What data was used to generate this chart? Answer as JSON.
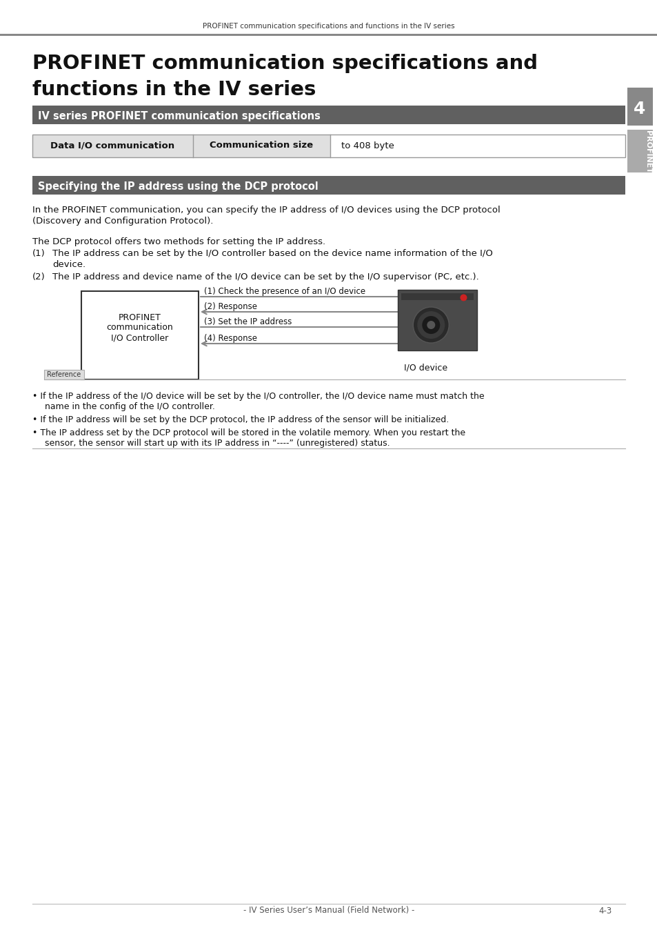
{
  "page_header": "PROFINET communication specifications and functions in the IV series",
  "main_title_line1": "PROFINET communication specifications and",
  "main_title_line2": "functions in the IV series",
  "section1_title": "IV series PROFINET communication specifications",
  "table_col1": "Data I/O communication",
  "table_col2": "Communication size",
  "table_col3": "to 408 byte",
  "section2_title": "Specifying the IP address using the DCP protocol",
  "para1a": "In the PROFINET communication, you can specify the IP address of I/O devices using the DCP protocol",
  "para1b": "(Discovery and Configuration Protocol).",
  "para2": "The DCP protocol offers two methods for setting the IP address.",
  "item1a": "The IP address can be set by the I/O controller based on the device name information of the I/O",
  "item1b": "device.",
  "item2": "The IP address and device name of the I/O device can be set by the I/O supervisor (PC, etc.).",
  "arrow1_label": "(1) Check the presence of an I/O device",
  "arrow2_label": "(2) Response",
  "arrow3_label": "(3) Set the IP address",
  "arrow4_label": "(4) Response",
  "box_label_line1": "PROFINET",
  "box_label_line2": "communication",
  "box_label_line3": "I/O Controller",
  "io_device_label": "I/O device",
  "ref_title": "Reference",
  "ref_bullet1a": "• If the IP address of the I/O device will be set by the I/O controller, the I/O device name must match the",
  "ref_bullet1b": "  name in the config of the I/O controller.",
  "ref_bullet2": "• If the IP address will be set by the DCP protocol, the IP address of the sensor will be initialized.",
  "ref_bullet3a": "• The IP address set by the DCP protocol will be stored in the volatile memory. When you restart the",
  "ref_bullet3b": "  sensor, the sensor will start up with its IP address in “----” (unregistered) status.",
  "footer": "- IV Series User’s Manual (Field Network) -",
  "footer_page": "4-3",
  "tab_label": "4",
  "tab_text": "PROFINET",
  "background_color": "#ffffff"
}
